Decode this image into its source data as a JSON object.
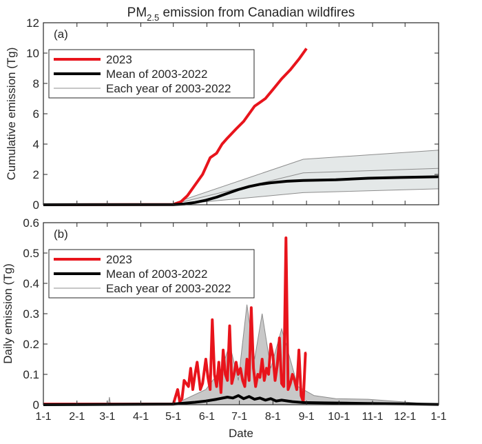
{
  "title_main": "PM",
  "title_sub": "2.5",
  "title_rest": " emission from Canadian wildfires",
  "colors": {
    "series_2023": "#e8141c",
    "series_mean": "#000000",
    "series_each": "#8c8c8c",
    "envelope": "#e4e8e8",
    "axis": "#262626"
  },
  "chart_data": [
    {
      "type": "line",
      "panel_label": "(a)",
      "ylabel": "Cumulative emission (Tg)",
      "xlabel": "",
      "ylim": [
        0,
        12
      ],
      "yticks": [
        0,
        2,
        4,
        6,
        8,
        10,
        12
      ],
      "xlim": [
        0,
        365
      ],
      "legend_position": "top-left",
      "legend": [
        "2023",
        "Mean of 2003-2022",
        "Each year of 2003-2022"
      ],
      "series": [
        {
          "name": "2023",
          "x": [
            0,
            120,
            127,
            133,
            140,
            147,
            154,
            160,
            165,
            170,
            178,
            185,
            195,
            205,
            212,
            220,
            228,
            236,
            243
          ],
          "y": [
            0,
            0.02,
            0.2,
            0.6,
            1.3,
            2.0,
            3.1,
            3.4,
            4.0,
            4.4,
            5.0,
            5.5,
            6.5,
            7.0,
            7.6,
            8.3,
            8.9,
            9.6,
            10.3
          ]
        },
        {
          "name": "Mean of 2003-2022",
          "x": [
            0,
            120,
            130,
            140,
            150,
            160,
            170,
            180,
            190,
            200,
            210,
            225,
            240,
            270,
            300,
            330,
            365
          ],
          "y": [
            0,
            0.01,
            0.05,
            0.15,
            0.3,
            0.5,
            0.75,
            1.0,
            1.2,
            1.35,
            1.45,
            1.55,
            1.6,
            1.65,
            1.75,
            1.8,
            1.85
          ]
        },
        {
          "name": "Each year of 2003-2022",
          "x": [
            120,
            240,
            365
          ],
          "y": [
            0.0,
            0.8,
            1.05
          ]
        },
        {
          "name": "Each year of 2003-2022",
          "x": [
            120,
            240,
            365
          ],
          "y": [
            0.1,
            3.0,
            3.6
          ]
        },
        {
          "name": "Each year of 2003-2022",
          "x": [
            120,
            240,
            365
          ],
          "y": [
            0.05,
            2.1,
            2.4
          ]
        }
      ]
    },
    {
      "type": "line",
      "panel_label": "(b)",
      "ylabel": "Daily emission (Tg)",
      "xlabel": "Date",
      "ylim": [
        0,
        0.6
      ],
      "yticks": [
        0,
        0.1,
        0.2,
        0.3,
        0.4,
        0.5,
        0.6
      ],
      "ytick_labels": [
        "0",
        "0.1",
        "0.2",
        "0.3",
        "0.4",
        "0.5",
        "0.6"
      ],
      "xlim": [
        0,
        365
      ],
      "xtick_labels": [
        "1-1",
        "2-1",
        "3-1",
        "4-1",
        "5-1",
        "6-1",
        "7-1",
        "8-1",
        "9-1",
        "10-1",
        "11-1",
        "12-1",
        "1-1"
      ],
      "xtick_days": [
        0,
        31,
        59,
        90,
        120,
        151,
        181,
        212,
        243,
        273,
        304,
        334,
        365
      ],
      "legend_position": "top-left",
      "legend": [
        "2023",
        "Mean of 2003-2022",
        "Each year of 2003-2022"
      ],
      "series": [
        {
          "name": "2023",
          "x": [
            0,
            120,
            124,
            126,
            128,
            130,
            134,
            136,
            138,
            140,
            142,
            145,
            147,
            150,
            152,
            154,
            156,
            158,
            160,
            162,
            164,
            166,
            168,
            170,
            172,
            174,
            176,
            178,
            180,
            182,
            184,
            186,
            188,
            190,
            192,
            194,
            196,
            198,
            200,
            202,
            204,
            206,
            208,
            210,
            212,
            214,
            216,
            218,
            220,
            222,
            224,
            226,
            228,
            230,
            232,
            234,
            236,
            238,
            240,
            242,
            243
          ],
          "y": [
            0.002,
            0.002,
            0.05,
            0.01,
            0.02,
            0.08,
            0.06,
            0.12,
            0.05,
            0.1,
            0.14,
            0.05,
            0.07,
            0.15,
            0.09,
            0.05,
            0.28,
            0.1,
            0.06,
            0.14,
            0.04,
            0.18,
            0.1,
            0.08,
            0.26,
            0.07,
            0.1,
            0.14,
            0.1,
            0.12,
            0.08,
            0.06,
            0.15,
            0.08,
            0.32,
            0.12,
            0.06,
            0.1,
            0.09,
            0.15,
            0.08,
            0.12,
            0.1,
            0.2,
            0.16,
            0.08,
            0.13,
            0.22,
            0.07,
            0.06,
            0.55,
            0.05,
            0.07,
            0.1,
            0.08,
            0.05,
            0.18,
            0.03,
            0.01,
            0.17,
            0.17
          ]
        },
        {
          "name": "Mean of 2003-2022",
          "x": [
            0,
            120,
            130,
            140,
            150,
            160,
            170,
            175,
            180,
            185,
            190,
            195,
            200,
            205,
            210,
            215,
            220,
            230,
            240,
            260,
            280,
            300,
            330,
            365
          ],
          "y": [
            0.0,
            0.002,
            0.005,
            0.008,
            0.012,
            0.018,
            0.025,
            0.022,
            0.03,
            0.02,
            0.027,
            0.018,
            0.022,
            0.015,
            0.02,
            0.012,
            0.015,
            0.01,
            0.007,
            0.006,
            0.005,
            0.004,
            0.003,
            0.001
          ]
        },
        {
          "name": "Each year of 2003-2022",
          "x": [
            0,
            60,
            61,
            62,
            120,
            150,
            165,
            172,
            180,
            188,
            195,
            202,
            210,
            220,
            235,
            250,
            270,
            300,
            330,
            365
          ],
          "y": [
            0.0,
            0.0,
            0.025,
            0.0,
            0.0,
            0.05,
            0.12,
            0.2,
            0.08,
            0.33,
            0.15,
            0.3,
            0.12,
            0.25,
            0.06,
            0.03,
            0.02,
            0.018,
            0.01,
            0.0
          ]
        }
      ]
    }
  ]
}
